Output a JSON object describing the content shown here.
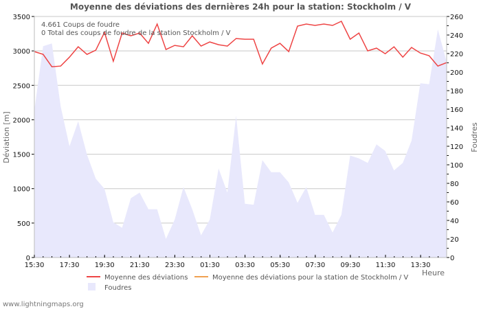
{
  "chart_data": {
    "type": "line",
    "title": "Moyenne des déviations des dernières 24h pour la station: Stockholm / V",
    "xlabel": "Heure",
    "ylabel_left": "Déviation  [m]",
    "ylabel_right": "Foudres",
    "ylim_left": [
      0,
      3500
    ],
    "ylim_right": [
      0,
      260
    ],
    "y_ticks_left": [
      "0",
      "500",
      "1000",
      "1500",
      "2000",
      "2500",
      "3000",
      "3500"
    ],
    "y_ticks_right": [
      "0",
      "20",
      "40",
      "60",
      "80",
      "100",
      "120",
      "140",
      "160",
      "180",
      "200",
      "220",
      "240",
      "260"
    ],
    "x_ticks": [
      "15:30",
      "17:30",
      "19:30",
      "21:30",
      "23:30",
      "01:30",
      "03:30",
      "05:30",
      "07:30",
      "09:30",
      "11:30",
      "13:30"
    ],
    "grid": true,
    "info_lines": [
      "4.661  Coups de foudre",
      "0 Total des coups de foudre de la station Stockholm / V"
    ],
    "legend": [
      {
        "label": "Moyenne des déviations",
        "color": "#ee4444",
        "type": "line"
      },
      {
        "label": "Moyenne des déviations pour la station de Stockholm / V",
        "color": "#f0a050",
        "type": "line"
      },
      {
        "label": "Foudres",
        "color": "#e8e8fc",
        "type": "area"
      }
    ],
    "series": [
      {
        "name": "Moyenne des déviations",
        "axis": "left",
        "color": "#ee4444",
        "values": [
          2990,
          2950,
          2770,
          2780,
          2910,
          3060,
          2950,
          3010,
          3270,
          2850,
          3260,
          3220,
          3260,
          3110,
          3390,
          3020,
          3080,
          3060,
          3220,
          3070,
          3130,
          3090,
          3070,
          3180,
          3170,
          3170,
          2810,
          3040,
          3110,
          2990,
          3360,
          3390,
          3370,
          3390,
          3370,
          3430,
          3170,
          3260,
          3000,
          3040,
          2960,
          3060,
          2910,
          3050,
          2970,
          2930,
          2780,
          2830
        ]
      },
      {
        "name": "Foudres",
        "axis": "right",
        "color": "#e8e8fc",
        "values": [
          159,
          228,
          231,
          163,
          120,
          147,
          111,
          85,
          74,
          38,
          32,
          64,
          70,
          52,
          52,
          20,
          41,
          76,
          52,
          24,
          41,
          96,
          70,
          153,
          58,
          57,
          105,
          92,
          92,
          81,
          59,
          76,
          46,
          46,
          27,
          46,
          110,
          107,
          102,
          122,
          115,
          94,
          102,
          126,
          188,
          187,
          246,
          211
        ]
      }
    ]
  },
  "footer": "www.lightningmaps.org"
}
